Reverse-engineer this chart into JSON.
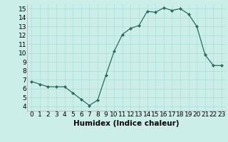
{
  "x": [
    0,
    1,
    2,
    3,
    4,
    5,
    6,
    7,
    8,
    9,
    10,
    11,
    12,
    13,
    14,
    15,
    16,
    17,
    18,
    19,
    20,
    21,
    22,
    23
  ],
  "y": [
    6.8,
    6.5,
    6.2,
    6.2,
    6.2,
    5.5,
    4.8,
    4.1,
    4.7,
    7.5,
    10.2,
    12.1,
    12.8,
    13.1,
    14.7,
    14.6,
    15.1,
    14.8,
    15.0,
    14.4,
    13.0,
    9.8,
    8.6,
    8.6
  ],
  "xlabel": "Humidex (Indice chaleur)",
  "xlim": [
    -0.5,
    23.5
  ],
  "ylim": [
    3.5,
    15.5
  ],
  "yticks": [
    4,
    5,
    6,
    7,
    8,
    9,
    10,
    11,
    12,
    13,
    14,
    15
  ],
  "xticks": [
    0,
    1,
    2,
    3,
    4,
    5,
    6,
    7,
    8,
    9,
    10,
    11,
    12,
    13,
    14,
    15,
    16,
    17,
    18,
    19,
    20,
    21,
    22,
    23
  ],
  "line_color": "#2d6b5e",
  "marker": "D",
  "marker_size": 2.0,
  "bg_color": "#cceee8",
  "grid_color": "#aaddda",
  "tick_label_fontsize": 6.5,
  "xlabel_fontsize": 7.5
}
